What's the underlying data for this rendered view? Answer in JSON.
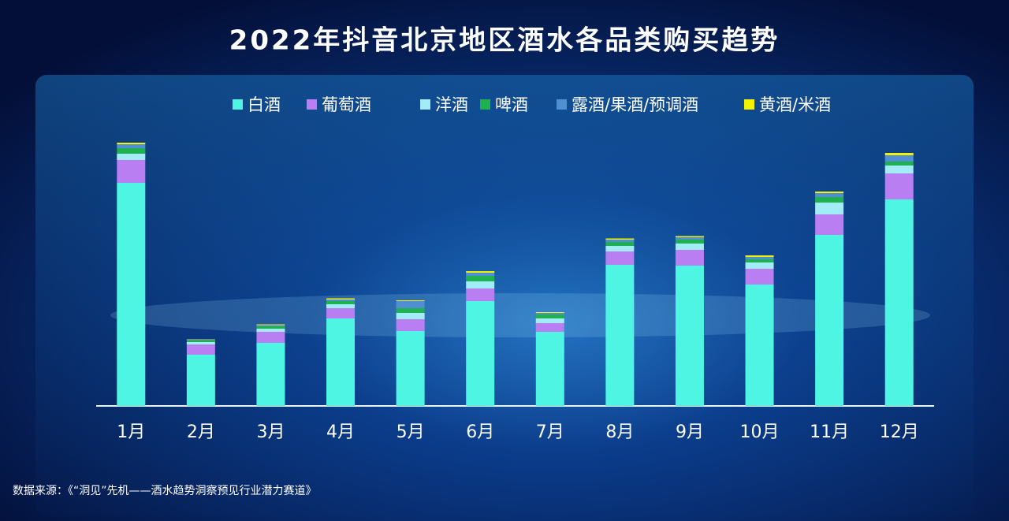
{
  "chart_data": {
    "type": "stacked-bar",
    "title": "2022年抖音北京地区酒水各品类购买趋势",
    "categories": [
      "1月",
      "2月",
      "3月",
      "4月",
      "5月",
      "6月",
      "7月",
      "8月",
      "9月",
      "10月",
      "11月",
      "12月"
    ],
    "series": [
      {
        "name": "白酒",
        "color": "#4ef5e2",
        "values": [
          283,
          65,
          80,
          111,
          95,
          133,
          94,
          179,
          178,
          154,
          217,
          262
        ]
      },
      {
        "name": "葡萄酒",
        "color": "#b87ef2",
        "values": [
          29,
          13,
          14,
          13,
          15,
          16,
          11,
          17,
          20,
          20,
          26,
          33
        ]
      },
      {
        "name": "洋酒",
        "color": "#a2ecf8",
        "values": [
          8,
          3,
          4,
          5,
          8,
          9,
          6,
          7,
          8,
          8,
          15,
          10
        ]
      },
      {
        "name": "啤酒",
        "color": "#1fb14f",
        "values": [
          7,
          2,
          3,
          4,
          6,
          7,
          5,
          5,
          5,
          4,
          7,
          5
        ]
      },
      {
        "name": "露酒/果酒/预调酒",
        "color": "#4f8fd2",
        "values": [
          5,
          1,
          1.5,
          2,
          9,
          4,
          2,
          3,
          3,
          3,
          5,
          8
        ]
      },
      {
        "name": "黄酒/米酒",
        "color": "#f2f200",
        "values": [
          2,
          0.5,
          1,
          1.5,
          1,
          2,
          1,
          1.5,
          1.5,
          2,
          2,
          3
        ]
      }
    ],
    "source": "数据来源：《“洞见”先机——酒水趋势洞察预见行业潜力赛道》"
  }
}
